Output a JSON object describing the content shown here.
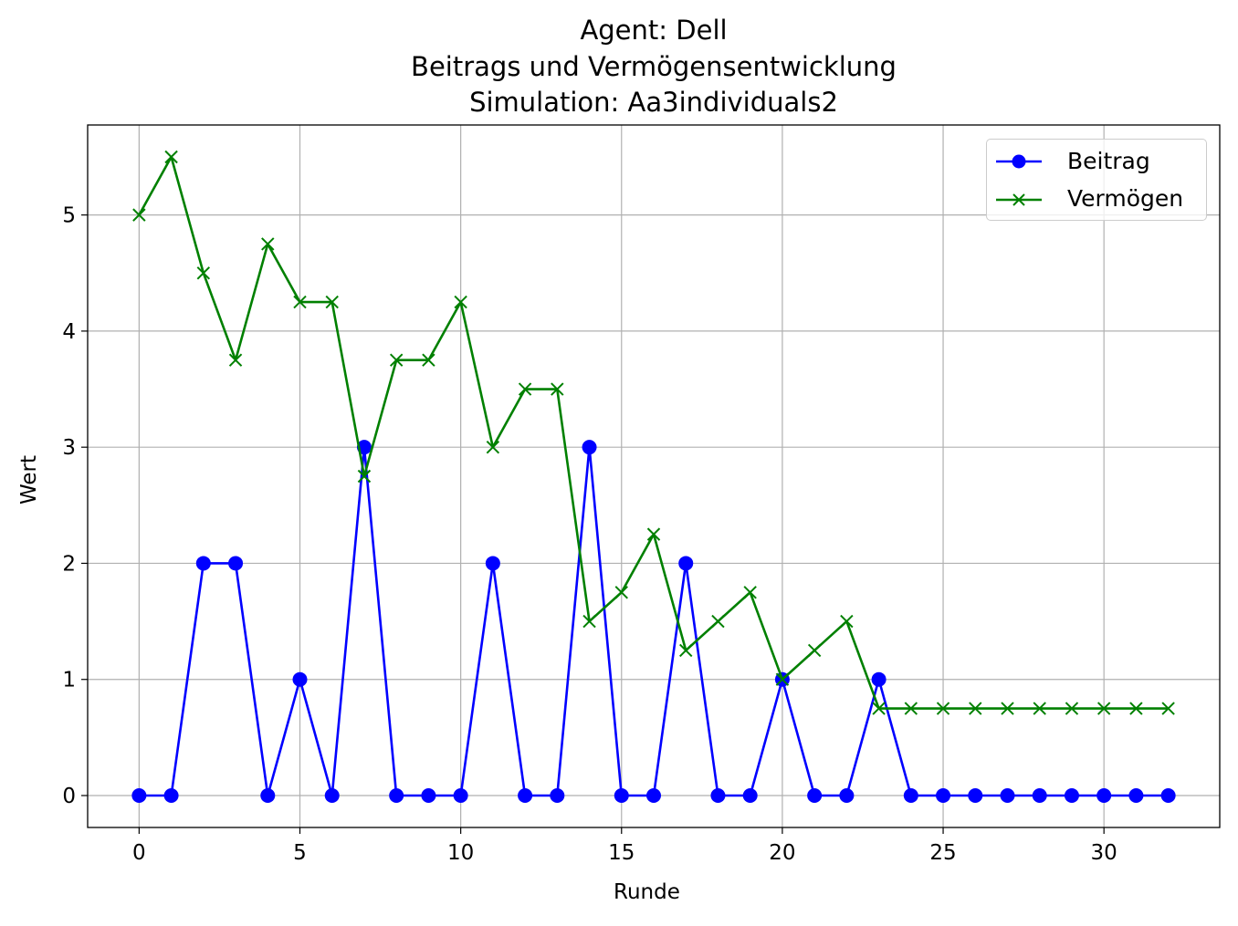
{
  "chart_data": {
    "type": "line",
    "title_lines": [
      "Agent: Dell",
      "Beitrags und Vermögensentwicklung",
      "Simulation: Aa3individuals2"
    ],
    "xlabel": "Runde",
    "ylabel": "Wert",
    "xlim": [
      -1.6,
      33.6
    ],
    "ylim": [
      -0.275,
      5.775
    ],
    "xticks": [
      0,
      5,
      10,
      15,
      20,
      25,
      30
    ],
    "yticks": [
      0,
      1,
      2,
      3,
      4,
      5
    ],
    "grid": true,
    "legend_position": "top-right",
    "x": [
      0,
      1,
      2,
      3,
      4,
      5,
      6,
      7,
      8,
      9,
      10,
      11,
      12,
      13,
      14,
      15,
      16,
      17,
      18,
      19,
      20,
      21,
      22,
      23,
      24,
      25,
      26,
      27,
      28,
      29,
      30,
      31,
      32
    ],
    "series": [
      {
        "name": "Beitrag",
        "color": "#0000ff",
        "marker": "circle",
        "values": [
          0,
          0,
          2,
          2,
          0,
          1,
          0,
          3,
          0,
          0,
          0,
          2,
          0,
          0,
          3,
          0,
          0,
          2,
          0,
          0,
          1,
          0,
          0,
          1,
          0,
          0,
          0,
          0,
          0,
          0,
          0,
          0,
          0
        ]
      },
      {
        "name": "Vermögen",
        "color": "#008000",
        "marker": "x",
        "values": [
          5,
          5.5,
          4.5,
          3.75,
          4.75,
          4.25,
          4.25,
          2.75,
          3.75,
          3.75,
          4.25,
          3,
          3.5,
          3.5,
          1.5,
          1.75,
          2.25,
          1.25,
          1.5,
          1.75,
          1,
          1.25,
          1.5,
          0.75,
          0.75,
          0.75,
          0.75,
          0.75,
          0.75,
          0.75,
          0.75,
          0.75,
          0.75
        ]
      }
    ]
  }
}
